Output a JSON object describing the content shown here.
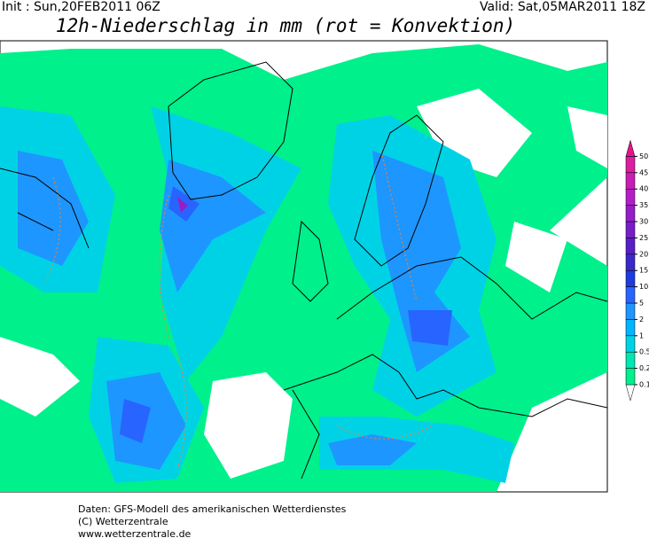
{
  "header": {
    "init": "Init : Sun,20FEB2011 06Z",
    "valid": "Valid: Sat,05MAR2011 18Z",
    "title": "12h-Niederschlag in mm (rot = Konvektion)"
  },
  "legend": {
    "levels": [
      0.1,
      0.2,
      0.5,
      1,
      2,
      5,
      10,
      15,
      20,
      25,
      30,
      35,
      40,
      45,
      50
    ],
    "colors": [
      "#ffffff",
      "#00f08c",
      "#00e6b4",
      "#00d2e6",
      "#00b4ff",
      "#1e96ff",
      "#2864ff",
      "#1e3cdc",
      "#3c28c8",
      "#5a1ec8",
      "#781ec8",
      "#961ec8",
      "#b41ec8",
      "#c81eb4",
      "#dc1ea0",
      "#e6148c"
    ]
  },
  "footer": {
    "line1": "Daten: GFS-Modell des amerikanischen Wetterdienstes",
    "line2": "(C) Wetterzentrale",
    "line3": "www.wetterzentrale.de"
  }
}
